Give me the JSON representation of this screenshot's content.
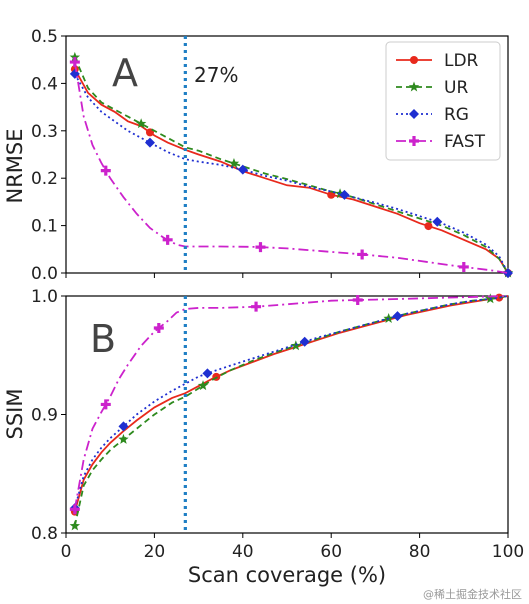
{
  "chart_data": [
    {
      "type": "line",
      "panel": "A",
      "xlabel": "",
      "ylabel": "NRMSE",
      "xlim": [
        0,
        100
      ],
      "ylim": [
        0,
        0.5
      ],
      "yticks": [
        "0.0",
        "0.1",
        "0.2",
        "0.3",
        "0.4",
        "0.5"
      ],
      "vline": {
        "x": 27,
        "label": "27%"
      },
      "legend": {
        "position": "top-right",
        "entries": [
          "LDR",
          "UR",
          "RG",
          "FAST"
        ]
      },
      "series": [
        {
          "name": "LDR",
          "color": "#e8291c",
          "dash": "",
          "marker": "circle",
          "x": [
            2,
            5,
            8,
            11,
            14,
            17,
            20,
            23,
            27,
            30,
            35,
            40,
            45,
            50,
            55,
            60,
            65,
            70,
            75,
            80,
            85,
            90,
            95,
            98,
            100
          ],
          "y": [
            0.43,
            0.38,
            0.355,
            0.34,
            0.32,
            0.31,
            0.29,
            0.275,
            0.26,
            0.25,
            0.235,
            0.215,
            0.2,
            0.185,
            0.18,
            0.165,
            0.155,
            0.14,
            0.125,
            0.105,
            0.09,
            0.07,
            0.05,
            0.03,
            0.0
          ],
          "marker_at": [
            2,
            19,
            60,
            82,
            100
          ]
        },
        {
          "name": "UR",
          "color": "#2e8a1e",
          "dash": "6,4",
          "marker": "star",
          "x": [
            2,
            5,
            8,
            11,
            14,
            17,
            20,
            23,
            27,
            30,
            35,
            40,
            45,
            50,
            55,
            60,
            65,
            70,
            75,
            80,
            85,
            90,
            95,
            98,
            100
          ],
          "y": [
            0.455,
            0.39,
            0.36,
            0.345,
            0.33,
            0.315,
            0.3,
            0.285,
            0.265,
            0.258,
            0.24,
            0.225,
            0.21,
            0.198,
            0.185,
            0.172,
            0.16,
            0.145,
            0.13,
            0.115,
            0.1,
            0.08,
            0.055,
            0.03,
            0.0
          ],
          "marker_at": [
            2,
            17,
            38,
            62,
            100
          ]
        },
        {
          "name": "RG",
          "color": "#1f2fd1",
          "dash": "2,3",
          "marker": "diamond",
          "x": [
            2,
            5,
            8,
            11,
            14,
            17,
            20,
            23,
            27,
            30,
            35,
            40,
            45,
            50,
            55,
            60,
            65,
            70,
            75,
            80,
            85,
            90,
            95,
            98,
            100
          ],
          "y": [
            0.42,
            0.37,
            0.34,
            0.32,
            0.3,
            0.285,
            0.27,
            0.255,
            0.24,
            0.235,
            0.228,
            0.218,
            0.205,
            0.195,
            0.182,
            0.172,
            0.16,
            0.148,
            0.135,
            0.12,
            0.105,
            0.085,
            0.06,
            0.035,
            0.0
          ],
          "marker_at": [
            2,
            19,
            40,
            63,
            84,
            100
          ]
        },
        {
          "name": "FAST",
          "color": "#cc22cc",
          "dash": "10,4,2,4",
          "marker": "plus",
          "x": [
            2,
            4,
            6,
            8,
            10,
            13,
            16,
            19,
            22,
            25,
            27,
            30,
            35,
            43,
            50,
            58,
            66,
            75,
            88,
            96,
            100
          ],
          "y": [
            0.445,
            0.33,
            0.27,
            0.232,
            0.2,
            0.16,
            0.125,
            0.095,
            0.075,
            0.06,
            0.056,
            0.056,
            0.056,
            0.055,
            0.052,
            0.046,
            0.04,
            0.032,
            0.015,
            0.006,
            0.0
          ],
          "marker_at": [
            2,
            9,
            23,
            44,
            67,
            90
          ]
        }
      ]
    },
    {
      "type": "line",
      "panel": "B",
      "xlabel": "Scan coverage (%)",
      "ylabel": "SSIM",
      "xlim": [
        0,
        100
      ],
      "ylim": [
        0.8,
        1.0
      ],
      "xticks": [
        "0",
        "20",
        "40",
        "60",
        "80",
        "100"
      ],
      "yticks": [
        "0.8",
        "0.9",
        "1.0"
      ],
      "vline": {
        "x": 27
      },
      "series": [
        {
          "name": "LDR",
          "color": "#e8291c",
          "dash": "",
          "marker": "circle",
          "x": [
            2,
            4,
            6,
            8,
            10,
            13,
            16,
            20,
            24,
            27,
            30,
            33,
            37,
            42,
            47,
            52,
            57,
            62,
            67,
            72,
            77,
            82,
            87,
            92,
            97,
            100
          ],
          "y": [
            0.818,
            0.845,
            0.858,
            0.868,
            0.876,
            0.886,
            0.895,
            0.906,
            0.914,
            0.918,
            0.924,
            0.93,
            0.937,
            0.944,
            0.951,
            0.957,
            0.963,
            0.969,
            0.974,
            0.979,
            0.984,
            0.988,
            0.992,
            0.995,
            0.998,
            1.0
          ],
          "marker_at": [
            2,
            34,
            98
          ]
        },
        {
          "name": "UR",
          "color": "#2e8a1e",
          "dash": "6,4",
          "marker": "star",
          "x": [
            2,
            4,
            6,
            8,
            10,
            13,
            16,
            20,
            24,
            27,
            30,
            33,
            37,
            42,
            47,
            52,
            57,
            62,
            67,
            72,
            77,
            82,
            87,
            92,
            97,
            100
          ],
          "y": [
            0.806,
            0.84,
            0.853,
            0.862,
            0.87,
            0.879,
            0.888,
            0.9,
            0.91,
            0.915,
            0.922,
            0.929,
            0.937,
            0.945,
            0.952,
            0.958,
            0.964,
            0.97,
            0.975,
            0.98,
            0.985,
            0.989,
            0.993,
            0.996,
            0.998,
            1.0
          ],
          "marker_at": [
            2,
            13,
            31,
            52,
            73,
            96
          ]
        },
        {
          "name": "RG",
          "color": "#1f2fd1",
          "dash": "2,3",
          "marker": "diamond",
          "x": [
            2,
            4,
            6,
            8,
            10,
            13,
            16,
            20,
            24,
            27,
            30,
            33,
            37,
            42,
            47,
            52,
            57,
            62,
            67,
            72,
            77,
            82,
            87,
            92,
            97,
            100
          ],
          "y": [
            0.821,
            0.848,
            0.862,
            0.872,
            0.88,
            0.89,
            0.9,
            0.911,
            0.92,
            0.926,
            0.932,
            0.936,
            0.941,
            0.947,
            0.953,
            0.959,
            0.965,
            0.97,
            0.975,
            0.98,
            0.985,
            0.989,
            0.993,
            0.996,
            0.998,
            1.0
          ],
          "marker_at": [
            2,
            13,
            32,
            54,
            75
          ]
        },
        {
          "name": "FAST",
          "color": "#cc22cc",
          "dash": "10,4,2,4",
          "marker": "plus",
          "x": [
            2,
            4,
            6,
            8,
            10,
            12,
            14,
            17,
            20,
            23,
            25,
            27,
            30,
            35,
            43,
            50,
            60,
            70,
            80,
            90,
            100
          ],
          "y": [
            0.82,
            0.862,
            0.888,
            0.902,
            0.915,
            0.93,
            0.942,
            0.958,
            0.97,
            0.979,
            0.986,
            0.989,
            0.99,
            0.99,
            0.991,
            0.993,
            0.996,
            0.997,
            0.998,
            0.999,
            1.0
          ],
          "marker_at": [
            2,
            9,
            21,
            43,
            66
          ]
        }
      ]
    }
  ],
  "watermark": "@稀土掘金技术社区"
}
